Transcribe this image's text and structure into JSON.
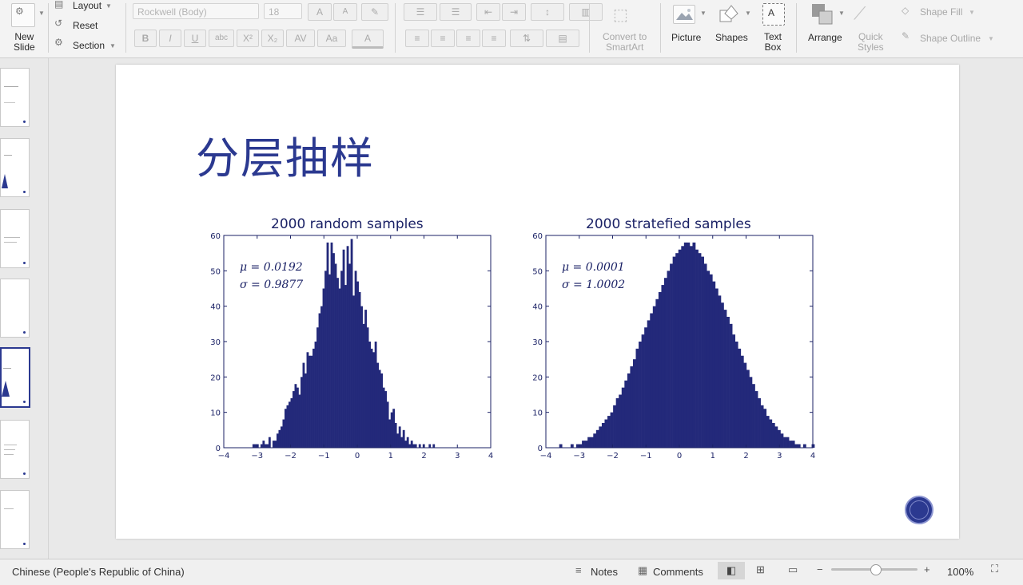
{
  "ribbon": {
    "new_slide": [
      "New",
      "Slide"
    ],
    "layout": "Layout",
    "reset": "Reset",
    "section": "Section",
    "font_name": "Rockwell (Body)",
    "font_size": "18",
    "bold": "B",
    "italic": "I",
    "underline": "U",
    "strike": "abc",
    "superscript": "X²",
    "subscript": "X₂",
    "spacing": "AV",
    "case": "Aa",
    "font_color": "A",
    "grow": "A",
    "shrink": "A",
    "convert_smartart": [
      "Convert to",
      "SmartArt"
    ],
    "picture": "Picture",
    "shapes": "Shapes",
    "text_box": [
      "Text",
      "Box"
    ],
    "arrange": "Arrange",
    "quick_styles": [
      "Quick",
      "Styles"
    ],
    "shape_fill": "Shape Fill",
    "shape_outline": "Shape Outline"
  },
  "slide": {
    "title": "分层抽样",
    "left_hist": {
      "title": "2000 random samples",
      "mu": "μ = 0.0192",
      "sigma": "σ = 0.9877"
    },
    "right_hist": {
      "title": "2000 stratefied samples",
      "mu": "μ = 0.0001",
      "sigma": "σ = 1.0002"
    }
  },
  "chart_data": [
    {
      "type": "bar",
      "title": "2000 random samples",
      "xlim": [
        -4,
        4
      ],
      "ylim": [
        0,
        60
      ],
      "xticks": [
        "−4",
        "−3",
        "−2",
        "−1",
        "0",
        "1",
        "2",
        "3",
        "4"
      ],
      "yticks": [
        "0",
        "10",
        "20",
        "30",
        "40",
        "50",
        "60"
      ],
      "bin_start": -3.2,
      "bin_width": 0.06,
      "values": [
        0,
        1,
        1,
        1,
        0,
        1,
        2,
        1,
        1,
        3,
        0,
        2,
        2,
        4,
        5,
        6,
        8,
        11,
        12,
        13,
        14,
        16,
        18,
        17,
        15,
        20,
        24,
        21,
        27,
        26,
        26,
        28,
        30,
        34,
        38,
        40,
        45,
        50,
        58,
        49,
        58,
        55,
        52,
        48,
        45,
        50,
        56,
        46,
        57,
        52,
        59,
        43,
        50,
        47,
        44,
        40,
        35,
        39,
        34,
        30,
        28,
        27,
        30,
        24,
        22,
        21,
        17,
        16,
        13,
        8,
        10,
        11,
        7,
        4,
        6,
        3,
        5,
        2,
        3,
        1,
        2,
        1,
        1,
        0,
        1,
        0,
        1,
        0,
        0,
        1,
        0,
        1,
        0,
        0
      ],
      "color": "#23297a"
    },
    {
      "type": "bar",
      "title": "2000 stratefied samples",
      "xlim": [
        -4,
        4
      ],
      "ylim": [
        0,
        60
      ],
      "xticks": [
        "−4",
        "−3",
        "−2",
        "−1",
        "0",
        "1",
        "2",
        "3",
        "4"
      ],
      "yticks": [
        "0",
        "10",
        "20",
        "30",
        "40",
        "50",
        "60"
      ],
      "bin_start": -3.6,
      "bin_width": 0.085,
      "values": [
        1,
        0,
        0,
        0,
        1,
        0,
        1,
        1,
        2,
        2,
        3,
        3,
        4,
        5,
        6,
        7,
        8,
        9,
        10,
        12,
        14,
        15,
        17,
        19,
        21,
        23,
        25,
        28,
        30,
        32,
        34,
        36,
        38,
        40,
        42,
        44,
        46,
        48,
        50,
        52,
        54,
        55,
        56,
        57,
        58,
        58,
        57,
        58,
        56,
        55,
        54,
        52,
        50,
        49,
        47,
        45,
        43,
        41,
        39,
        37,
        35,
        32,
        30,
        28,
        26,
        24,
        22,
        20,
        18,
        16,
        14,
        12,
        11,
        9,
        8,
        7,
        6,
        5,
        4,
        3,
        3,
        2,
        2,
        1,
        1,
        0,
        1,
        0,
        0,
        1
      ],
      "color": "#23297a"
    }
  ],
  "status_bar": {
    "language": "Chinese (People's Republic of China)",
    "notes": "Notes",
    "comments": "Comments",
    "zoom": "100%"
  },
  "colors": {
    "accent": "#2b3990",
    "bars": "#23297a",
    "ribbon_bg": "#f3f3f3"
  }
}
